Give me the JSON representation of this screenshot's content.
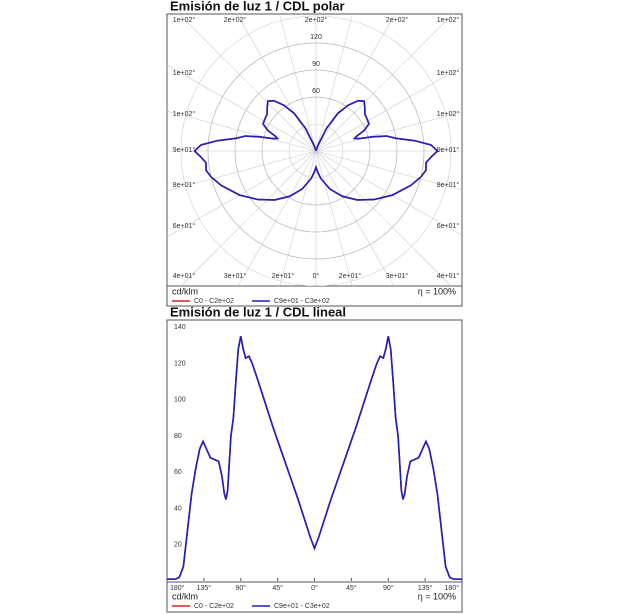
{
  "chart_data": [
    {
      "type": "polar",
      "title": "Emisión de luz 1 / CDL polar",
      "unit": "cd/klm",
      "efficiency": "η = 100%",
      "rlim": [
        0,
        150
      ],
      "rticks": [
        60,
        90,
        120
      ],
      "angle_labels": {
        "top": [
          "1e+02°",
          "2e+02°",
          "2e+02°",
          "2e+02°",
          "1e+02°"
        ],
        "left": [
          "1e+02°",
          "1e+02°",
          "9e+01°",
          "8e+01°",
          "6e+01°"
        ],
        "right": [
          "1e+02°",
          "1e+02°",
          "9e+01°",
          "8e+01°",
          "6e+01°"
        ],
        "bottom": [
          "4e+01°",
          "3e+01°",
          "2e+01°",
          "0°",
          "2e+01°",
          "3e+01°",
          "4e+01°"
        ]
      },
      "theta": [
        -180,
        -170,
        -165,
        -160,
        -155,
        -150,
        -145,
        -140,
        -136,
        -132,
        -127,
        -122,
        -117,
        -113,
        -110,
        -108,
        -106,
        -104,
        -102,
        -99,
        -96,
        -93,
        -90,
        -87,
        -84,
        -80,
        -76,
        -70,
        -60,
        -50,
        -40,
        -30,
        -20,
        -10,
        -5,
        0,
        5,
        10,
        20,
        30,
        40,
        50,
        60,
        70,
        76,
        80,
        84,
        87,
        90,
        93,
        96,
        99,
        102,
        104,
        106,
        108,
        110,
        113,
        117,
        122,
        127,
        132,
        136,
        140,
        145,
        150,
        155,
        160,
        165,
        170,
        180
      ],
      "series": [
        {
          "name": "C0 - C2e+02",
          "color": "#e02020",
          "values": [
            1,
            1,
            2,
            8,
            28,
            48,
            62,
            73,
            77,
            73,
            68,
            67,
            66,
            58,
            48,
            45,
            50,
            65,
            80,
            90,
            110,
            128,
            135,
            128,
            123,
            124,
            120,
            112,
            98,
            84,
            71,
            58,
            45,
            31,
            24,
            18,
            24,
            31,
            45,
            58,
            71,
            84,
            98,
            112,
            120,
            124,
            123,
            128,
            135,
            128,
            110,
            90,
            80,
            65,
            50,
            45,
            48,
            58,
            66,
            67,
            68,
            73,
            77,
            73,
            62,
            48,
            28,
            8,
            2,
            1,
            1
          ]
        },
        {
          "name": "C9e+01 - C3e+02",
          "color": "#2020c0",
          "values": [
            1,
            1,
            2,
            8,
            28,
            48,
            62,
            73,
            77,
            73,
            68,
            67,
            66,
            58,
            48,
            45,
            50,
            65,
            80,
            90,
            110,
            128,
            135,
            128,
            123,
            124,
            120,
            112,
            98,
            84,
            71,
            58,
            45,
            31,
            24,
            18,
            24,
            31,
            45,
            58,
            71,
            84,
            98,
            112,
            120,
            124,
            123,
            128,
            135,
            128,
            110,
            90,
            80,
            65,
            50,
            45,
            48,
            58,
            66,
            67,
            68,
            73,
            77,
            73,
            62,
            48,
            28,
            8,
            2,
            1,
            1
          ]
        }
      ]
    },
    {
      "type": "line",
      "title": "Emisión de luz 1 / CDL lineal",
      "unit": "cd/klm",
      "efficiency": "η = 100%",
      "xlim": [
        -180,
        180
      ],
      "ylim": [
        0,
        144
      ],
      "xticks": [
        {
          "value": -180,
          "label": "180°"
        },
        {
          "value": -135,
          "label": "135°"
        },
        {
          "value": -90,
          "label": "90°"
        },
        {
          "value": -45,
          "label": "45°"
        },
        {
          "value": 0,
          "label": "0°"
        },
        {
          "value": 45,
          "label": "45°"
        },
        {
          "value": 90,
          "label": "90°"
        },
        {
          "value": 135,
          "label": "135°"
        },
        {
          "value": 180,
          "label": "180°"
        }
      ],
      "yticks": [
        20,
        40,
        60,
        80,
        100,
        120,
        140
      ],
      "x": [
        -180,
        -170,
        -165,
        -160,
        -155,
        -150,
        -145,
        -140,
        -136,
        -132,
        -127,
        -122,
        -117,
        -113,
        -110,
        -108,
        -106,
        -104,
        -102,
        -99,
        -96,
        -93,
        -90,
        -87,
        -84,
        -80,
        -76,
        -70,
        -60,
        -50,
        -40,
        -30,
        -20,
        -10,
        -5,
        0,
        5,
        10,
        20,
        30,
        40,
        50,
        60,
        70,
        76,
        80,
        84,
        87,
        90,
        93,
        96,
        99,
        102,
        104,
        106,
        108,
        110,
        113,
        117,
        122,
        127,
        132,
        136,
        140,
        145,
        150,
        155,
        160,
        165,
        170,
        180
      ],
      "series": [
        {
          "name": "C0 - C2e+02",
          "color": "#e02020",
          "values": [
            1,
            1,
            2,
            8,
            28,
            48,
            62,
            73,
            77,
            73,
            68,
            67,
            66,
            58,
            48,
            45,
            50,
            65,
            80,
            90,
            110,
            128,
            135,
            128,
            123,
            124,
            120,
            112,
            98,
            84,
            71,
            58,
            45,
            31,
            24,
            18,
            24,
            31,
            45,
            58,
            71,
            84,
            98,
            112,
            120,
            124,
            123,
            128,
            135,
            128,
            110,
            90,
            80,
            65,
            50,
            45,
            48,
            58,
            66,
            67,
            68,
            73,
            77,
            73,
            62,
            48,
            28,
            8,
            2,
            1,
            1
          ]
        },
        {
          "name": "C9e+01 - C3e+02",
          "color": "#2020c0",
          "values": [
            1,
            1,
            2,
            8,
            28,
            48,
            62,
            73,
            77,
            73,
            68,
            67,
            66,
            58,
            48,
            45,
            50,
            65,
            80,
            90,
            110,
            128,
            135,
            128,
            123,
            124,
            120,
            112,
            98,
            84,
            71,
            58,
            45,
            31,
            24,
            18,
            24,
            31,
            45,
            58,
            71,
            84,
            98,
            112,
            120,
            124,
            123,
            128,
            135,
            128,
            110,
            90,
            80,
            65,
            50,
            45,
            48,
            58,
            66,
            67,
            68,
            73,
            77,
            73,
            62,
            48,
            28,
            8,
            2,
            1,
            1
          ]
        }
      ]
    }
  ]
}
